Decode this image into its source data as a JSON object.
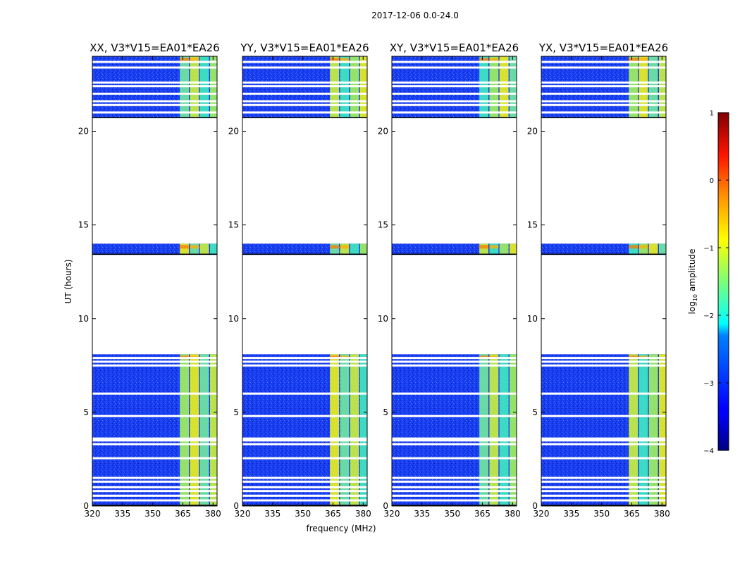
{
  "chart_data": {
    "type": "heatmap",
    "suptitle": "2017-12-06 0.0-24.0",
    "xlabel": "frequency (MHz)",
    "ylabel": "UT (hours)",
    "xlim": [
      320,
      382
    ],
    "ylim": [
      0,
      24.0
    ],
    "xticks": [
      320,
      335,
      350,
      365,
      380
    ],
    "yticks": [
      0,
      5,
      10,
      15,
      20
    ],
    "panels": [
      {
        "title": "XX, V3*V15=EA01*EA26",
        "polarization": "XX"
      },
      {
        "title": "YY, V3*V15=EA01*EA26",
        "polarization": "YY"
      },
      {
        "title": "XY, V3*V15=EA01*EA26",
        "polarization": "XY"
      },
      {
        "title": "YX, V3*V15=EA01*EA26",
        "polarization": "YX"
      }
    ],
    "data_blocks_hours": [
      [
        0,
        8.1
      ],
      [
        13.4,
        14.0
      ],
      [
        20.7,
        24.0
      ]
    ],
    "gap_lines_hours": [
      0.3,
      0.55,
      0.8,
      1.0,
      1.3,
      1.5,
      2.55,
      3.3,
      3.5,
      3.6,
      4.8,
      6.0,
      7.5,
      7.7,
      7.9,
      21.0,
      21.4,
      21.6,
      22.0,
      22.4,
      22.6,
      23.4,
      23.7
    ],
    "band_start_mhz": 363.5,
    "band_stripes_mhz": [
      [
        363.5,
        368
      ],
      [
        368.5,
        373
      ],
      [
        373.5,
        378
      ],
      [
        378.5,
        382
      ]
    ],
    "colorbar": {
      "label": "log10 amplitude",
      "min": -4,
      "max": 1,
      "ticks": [
        -4,
        -3,
        -2,
        -1,
        0,
        1
      ],
      "tick_labels": [
        "−4",
        "−3",
        "−2",
        "−1",
        "0",
        "1"
      ]
    }
  }
}
